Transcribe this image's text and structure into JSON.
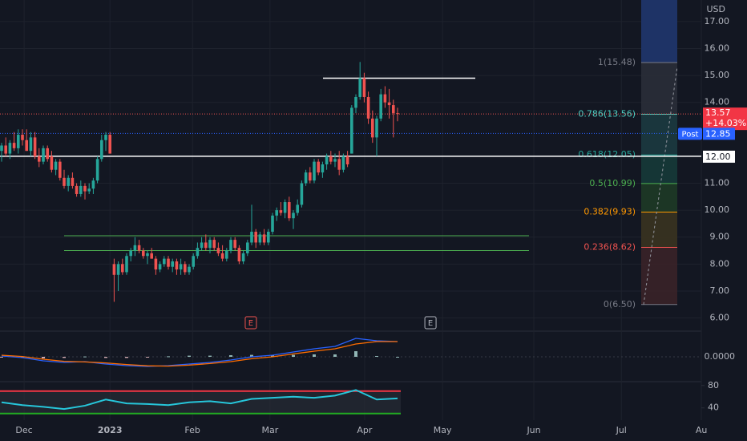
{
  "chart_data": {
    "type": "candlestick",
    "currency": "USD",
    "up_color": "#26a69a",
    "down_color": "#ef5350",
    "ylim": [
      5.6,
      17.8
    ],
    "yticks": [
      {
        "value": 17,
        "label": "17.00"
      },
      {
        "value": 16,
        "label": "16.00"
      },
      {
        "value": 15,
        "label": "15.00"
      },
      {
        "value": 14,
        "label": "14.00"
      },
      {
        "value": 11,
        "label": "11.00"
      },
      {
        "value": 10,
        "label": "10.00"
      },
      {
        "value": 9,
        "label": "9.00"
      },
      {
        "value": 8,
        "label": "8.00"
      },
      {
        "value": 7,
        "label": "7.00"
      },
      {
        "value": 6,
        "label": "6.00"
      }
    ],
    "xticks": [
      {
        "value": 5.4,
        "label": "Dec"
      },
      {
        "value": 26,
        "label": "2023"
      },
      {
        "value": 45.8,
        "label": "Feb"
      },
      {
        "value": 64.4,
        "label": "Mar"
      },
      {
        "value": 87.1,
        "label": "Apr"
      },
      {
        "value": 105.8,
        "label": "May"
      },
      {
        "value": 127.7,
        "label": "Jun"
      },
      {
        "value": 148.7,
        "label": "Jul"
      },
      {
        "value": 167.9,
        "label": "Au"
      }
    ],
    "candles": [
      [
        12.2,
        12.5,
        11.8,
        12.4
      ],
      [
        12.4,
        12.7,
        12.0,
        12.1
      ],
      [
        12.1,
        12.6,
        11.9,
        12.5
      ],
      [
        12.5,
        12.9,
        12.2,
        12.3
      ],
      [
        12.3,
        13.0,
        12.1,
        12.8
      ],
      [
        12.8,
        13.0,
        12.4,
        12.6
      ],
      [
        12.6,
        13.0,
        12.2,
        12.2
      ],
      [
        12.2,
        12.9,
        12.0,
        12.7
      ],
      [
        12.7,
        12.9,
        11.9,
        12.0
      ],
      [
        12.0,
        12.3,
        11.6,
        11.8
      ],
      [
        11.8,
        12.4,
        11.7,
        12.3
      ],
      [
        12.3,
        12.4,
        11.8,
        11.9
      ],
      [
        12.0,
        12.2,
        11.4,
        11.5
      ],
      [
        11.5,
        11.9,
        11.3,
        11.8
      ],
      [
        11.8,
        11.9,
        11.1,
        11.2
      ],
      [
        11.2,
        11.5,
        10.8,
        10.9
      ],
      [
        10.9,
        11.3,
        10.7,
        11.2
      ],
      [
        11.2,
        11.4,
        10.8,
        10.9
      ],
      [
        10.9,
        11.0,
        10.5,
        10.6
      ],
      [
        10.6,
        11.1,
        10.5,
        10.9
      ],
      [
        10.9,
        11.0,
        10.4,
        10.7
      ],
      [
        10.7,
        11.0,
        10.6,
        10.8
      ],
      [
        10.8,
        11.2,
        10.6,
        11.1
      ],
      [
        11.1,
        12.0,
        11.0,
        11.9
      ],
      [
        11.9,
        12.8,
        11.8,
        12.6
      ],
      [
        12.6,
        12.9,
        12.2,
        12.8
      ],
      [
        12.8,
        12.9,
        12.1,
        12.1
      ],
      [
        8.0,
        8.2,
        6.6,
        7.6
      ],
      [
        7.6,
        8.1,
        7.0,
        8.0
      ],
      [
        8.0,
        8.2,
        7.6,
        7.7
      ],
      [
        7.7,
        8.4,
        7.6,
        8.3
      ],
      [
        8.3,
        8.6,
        8.1,
        8.5
      ],
      [
        8.5,
        9.0,
        8.3,
        8.7
      ],
      [
        8.7,
        8.9,
        8.4,
        8.5
      ],
      [
        8.5,
        8.6,
        8.2,
        8.3
      ],
      [
        8.3,
        8.5,
        8.0,
        8.4
      ],
      [
        8.4,
        8.6,
        8.2,
        8.2
      ],
      [
        8.2,
        8.3,
        7.6,
        7.8
      ],
      [
        7.8,
        8.1,
        7.7,
        8.0
      ],
      [
        8.0,
        8.3,
        7.9,
        8.2
      ],
      [
        8.2,
        8.3,
        7.8,
        7.9
      ],
      [
        7.9,
        8.2,
        7.7,
        8.1
      ],
      [
        8.1,
        8.2,
        7.6,
        7.8
      ],
      [
        7.8,
        8.2,
        7.6,
        8.0
      ],
      [
        8.0,
        8.1,
        7.6,
        7.7
      ],
      [
        7.7,
        8.0,
        7.6,
        7.9
      ],
      [
        7.9,
        8.4,
        7.8,
        8.3
      ],
      [
        8.3,
        8.8,
        8.2,
        8.6
      ],
      [
        8.6,
        9.0,
        8.5,
        8.8
      ],
      [
        8.8,
        9.1,
        8.5,
        8.6
      ],
      [
        8.6,
        9.0,
        8.4,
        8.9
      ],
      [
        8.9,
        9.0,
        8.5,
        8.6
      ],
      [
        8.6,
        8.8,
        8.3,
        8.4
      ],
      [
        8.4,
        8.7,
        8.1,
        8.2
      ],
      [
        8.2,
        8.6,
        8.1,
        8.5
      ],
      [
        8.5,
        9.0,
        8.4,
        8.9
      ],
      [
        8.9,
        9.0,
        8.5,
        8.6
      ],
      [
        8.6,
        8.7,
        8.0,
        8.1
      ],
      [
        8.1,
        8.5,
        8.0,
        8.4
      ],
      [
        8.4,
        8.9,
        8.3,
        8.8
      ],
      [
        8.8,
        10.2,
        8.7,
        9.2
      ],
      [
        9.2,
        9.3,
        8.6,
        8.8
      ],
      [
        8.8,
        9.2,
        8.7,
        9.1
      ],
      [
        9.1,
        9.3,
        8.7,
        8.8
      ],
      [
        8.8,
        9.3,
        8.7,
        9.2
      ],
      [
        9.2,
        9.9,
        9.1,
        9.8
      ],
      [
        9.8,
        10.1,
        9.6,
        10.0
      ],
      [
        10.0,
        10.3,
        9.8,
        9.9
      ],
      [
        9.9,
        10.4,
        9.7,
        10.3
      ],
      [
        10.3,
        10.5,
        9.6,
        9.7
      ],
      [
        9.7,
        10.0,
        9.3,
        9.9
      ],
      [
        9.9,
        10.4,
        9.8,
        10.2
      ],
      [
        10.2,
        11.1,
        10.1,
        11.0
      ],
      [
        11.0,
        11.5,
        10.9,
        11.4
      ],
      [
        11.4,
        11.6,
        11.0,
        11.1
      ],
      [
        11.1,
        11.9,
        11.0,
        11.8
      ],
      [
        11.8,
        11.9,
        11.3,
        11.4
      ],
      [
        11.4,
        11.8,
        11.2,
        11.7
      ],
      [
        11.7,
        12.1,
        11.5,
        12.0
      ],
      [
        12.0,
        12.2,
        11.7,
        11.8
      ],
      [
        11.8,
        12.1,
        11.6,
        11.9
      ],
      [
        11.9,
        12.2,
        11.3,
        11.5
      ],
      [
        11.5,
        12.1,
        11.4,
        12.0
      ],
      [
        12.0,
        12.2,
        11.6,
        11.7
      ],
      [
        12.1,
        13.9,
        12.1,
        13.8
      ],
      [
        13.8,
        14.3,
        13.6,
        14.2
      ],
      [
        14.2,
        15.5,
        14.1,
        14.9
      ],
      [
        14.9,
        15.1,
        14.0,
        14.2
      ],
      [
        14.2,
        14.4,
        13.2,
        13.4
      ],
      [
        13.4,
        13.7,
        12.5,
        12.7
      ],
      [
        12.7,
        13.5,
        12.0,
        13.4
      ],
      [
        13.4,
        14.5,
        13.3,
        14.3
      ],
      [
        14.3,
        14.6,
        13.8,
        14.0
      ],
      [
        14.0,
        14.5,
        13.4,
        13.9
      ],
      [
        13.9,
        14.1,
        12.7,
        13.6
      ],
      [
        13.6,
        13.8,
        13.3,
        13.57
      ]
    ],
    "last_price": {
      "value": 13.57,
      "label": "13.57",
      "change": "+14.03%"
    },
    "post_market": {
      "name": "Post",
      "value": 12.85,
      "label": "12.85"
    },
    "level": {
      "value": 12,
      "label": "12.00"
    },
    "hlines": [
      {
        "value": 14.9,
        "color": "#ffffff"
      },
      {
        "value": 9.05,
        "color": "#4caf50"
      },
      {
        "value": 8.5,
        "color": "#4caf50"
      }
    ],
    "fib": [
      {
        "label": "1(15.48)",
        "value": 15.48,
        "color": "#787b86",
        "fill": "#2a2e39"
      },
      {
        "label": "0.786(13.56)",
        "value": 13.56,
        "color": "#4dd0c4",
        "fill": "#1c3a40"
      },
      {
        "label": "0.618(12.05)",
        "value": 12.05,
        "color": "#26a69a",
        "fill": "#163a38"
      },
      {
        "label": "0.5(10.99)",
        "value": 10.99,
        "color": "#4caf50",
        "fill": "#1e3a26"
      },
      {
        "label": "0.382(9.93)",
        "value": 9.93,
        "color": "#ff9800",
        "fill": "#3a3320"
      },
      {
        "label": "0.236(8.62)",
        "value": 8.62,
        "color": "#f05350",
        "fill": "#3a2228"
      },
      {
        "label": "0(6.50)",
        "value": 6.5,
        "color": "#787b86",
        "fill": "#2a2e39"
      }
    ],
    "earnings": [
      {
        "label": "E",
        "x": 59.8,
        "color": "#f05350"
      },
      {
        "label": "E",
        "x": 102.9,
        "color": "#b2b5be"
      }
    ],
    "macd": {
      "x": [
        0,
        5,
        10,
        15,
        20,
        25,
        30,
        35,
        40,
        45,
        50,
        55,
        60,
        65,
        70,
        75,
        80,
        85,
        90,
        95
      ],
      "macd": [
        0.05,
        -0.05,
        -0.25,
        -0.35,
        -0.3,
        -0.45,
        -0.55,
        -0.6,
        -0.55,
        -0.45,
        -0.35,
        -0.2,
        0.0,
        0.1,
        0.3,
        0.5,
        0.65,
        1.15,
        1.0,
        0.95
      ],
      "signal": [
        0.1,
        0.02,
        -0.15,
        -0.28,
        -0.32,
        -0.38,
        -0.48,
        -0.56,
        -0.58,
        -0.52,
        -0.42,
        -0.3,
        -0.12,
        0.0,
        0.18,
        0.35,
        0.5,
        0.8,
        0.95,
        0.95
      ],
      "macd_color": "#2962ff",
      "signal_color": "#ff6d00",
      "ylim": [
        -1.5,
        1.5
      ],
      "yticks": [
        {
          "value": 0,
          "label": "0.0000"
        }
      ]
    },
    "rsi": {
      "x": [
        0,
        5,
        10,
        15,
        20,
        25,
        30,
        35,
        40,
        45,
        50,
        55,
        60,
        65,
        70,
        75,
        80,
        85,
        90,
        95
      ],
      "values": [
        50,
        45,
        42,
        38,
        44,
        55,
        48,
        47,
        45,
        50,
        52,
        48,
        56,
        58,
        60,
        58,
        62,
        72,
        55,
        57
      ],
      "color": "#26c6da",
      "ylim": [
        21,
        84
      ],
      "yticks": [
        80,
        40
      ],
      "bands": [
        70,
        30
      ]
    }
  }
}
